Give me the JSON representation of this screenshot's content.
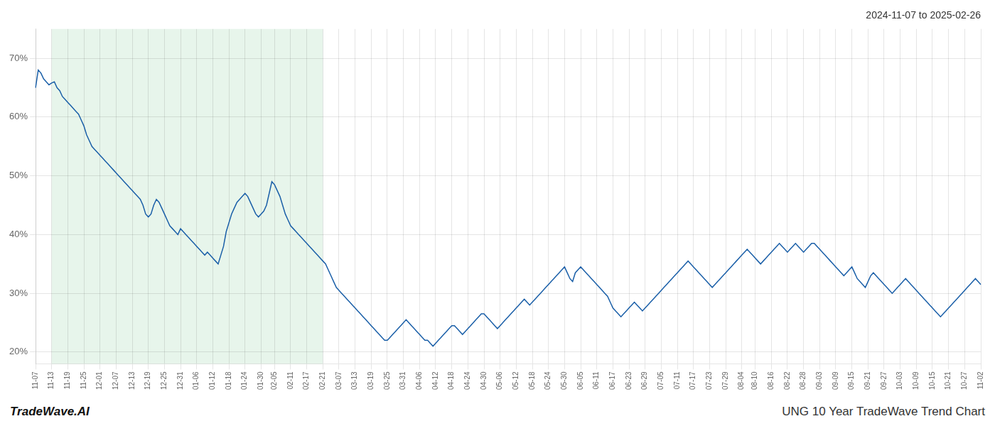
{
  "chart_data": {
    "type": "line",
    "title": "2024-11-07 to 2025-02-26",
    "annotations": [
      "TradeWave.AI",
      "UNG 10 Year TradeWave Trend Chart"
    ],
    "color": "#1a5fa8",
    "grid": true,
    "ylim": [
      18,
      75
    ],
    "yticks": [
      {
        "value": 20,
        "label": "20%"
      },
      {
        "value": 30,
        "label": "30%"
      },
      {
        "value": 40,
        "label": "40%"
      },
      {
        "value": 50,
        "label": "50%"
      },
      {
        "value": 60,
        "label": "60%"
      },
      {
        "value": 70,
        "label": "70%"
      }
    ],
    "shaded_region": {
      "from": "11-13",
      "to": "02-21",
      "color": "#d4edda"
    },
    "categories": [
      "11-07",
      null,
      null,
      null,
      null,
      null,
      "11-13",
      null,
      null,
      null,
      null,
      null,
      "11-19",
      null,
      null,
      null,
      null,
      null,
      "11-25",
      null,
      null,
      null,
      null,
      null,
      "12-01",
      null,
      null,
      null,
      null,
      null,
      "12-07",
      null,
      null,
      null,
      null,
      null,
      "12-13",
      null,
      null,
      null,
      null,
      null,
      "12-19",
      null,
      null,
      null,
      null,
      null,
      "12-25",
      null,
      null,
      null,
      null,
      null,
      "12-31",
      null,
      null,
      null,
      null,
      null,
      "01-06",
      null,
      null,
      null,
      null,
      null,
      "01-12",
      null,
      null,
      null,
      null,
      null,
      "01-18",
      null,
      null,
      null,
      null,
      null,
      "01-24",
      null,
      null,
      null,
      null,
      null,
      "01-30",
      null,
      null,
      null,
      null,
      "02-05",
      null,
      null,
      null,
      null,
      null,
      "02-11",
      null,
      null,
      null,
      null,
      null,
      "02-17",
      null,
      null,
      null,
      null,
      null,
      "02-21",
      null,
      null,
      null,
      null,
      null,
      "03-07",
      null,
      null,
      null,
      null,
      null,
      "03-13",
      null,
      null,
      null,
      null,
      null,
      "03-19",
      null,
      null,
      null,
      null,
      null,
      "03-25",
      null,
      null,
      null,
      null,
      null,
      "03-31",
      null,
      null,
      null,
      null,
      null,
      "04-06",
      null,
      null,
      null,
      null,
      null,
      "04-12",
      null,
      null,
      null,
      null,
      null,
      "04-18",
      null,
      null,
      null,
      null,
      null,
      "04-24",
      null,
      null,
      null,
      null,
      null,
      "04-30",
      null,
      null,
      null,
      null,
      null,
      "05-06",
      null,
      null,
      null,
      null,
      null,
      "05-12",
      null,
      null,
      null,
      null,
      null,
      "05-18",
      null,
      null,
      null,
      null,
      null,
      "05-24",
      null,
      null,
      null,
      null,
      null,
      "05-30",
      null,
      null,
      null,
      null,
      null,
      "06-05",
      null,
      null,
      null,
      null,
      null,
      "06-11",
      null,
      null,
      null,
      null,
      null,
      "06-17",
      null,
      null,
      null,
      null,
      null,
      "06-23",
      null,
      null,
      null,
      null,
      null,
      "06-29",
      null,
      null,
      null,
      null,
      null,
      "07-05",
      null,
      null,
      null,
      null,
      null,
      "07-11",
      null,
      null,
      null,
      null,
      null,
      "07-17",
      null,
      null,
      null,
      null,
      null,
      "07-23",
      null,
      null,
      null,
      null,
      null,
      "07-29",
      null,
      null,
      null,
      null,
      null,
      "08-04",
      null,
      null,
      null,
      null,
      "08-10",
      null,
      null,
      null,
      null,
      null,
      "08-16",
      null,
      null,
      null,
      null,
      null,
      "08-22",
      null,
      null,
      null,
      null,
      null,
      "08-28",
      null,
      null,
      null,
      null,
      null,
      "09-03",
      null,
      null,
      null,
      null,
      null,
      "09-09",
      null,
      null,
      null,
      null,
      null,
      "09-15",
      null,
      null,
      null,
      null,
      null,
      "09-21",
      null,
      null,
      null,
      null,
      null,
      "09-27",
      null,
      null,
      null,
      null,
      null,
      "10-03",
      null,
      null,
      null,
      null,
      null,
      "10-09",
      null,
      null,
      null,
      null,
      null,
      "10-15",
      null,
      null,
      null,
      null,
      null,
      "10-21",
      null,
      null,
      null,
      null,
      null,
      "10-27",
      null,
      null,
      null,
      null,
      null,
      "11-02"
    ],
    "values": [
      65.0,
      68.0,
      67.5,
      66.5,
      66.0,
      65.5,
      65.8,
      66.0,
      65.0,
      64.5,
      63.5,
      63.0,
      62.5,
      62.0,
      61.5,
      61.0,
      60.5,
      59.5,
      58.5,
      57.0,
      56.0,
      55.0,
      54.5,
      54.0,
      53.5,
      53.0,
      52.5,
      52.0,
      51.5,
      51.0,
      50.5,
      50.0,
      49.5,
      49.0,
      48.5,
      48.0,
      47.5,
      47.0,
      46.5,
      46.0,
      45.0,
      43.5,
      43.0,
      43.5,
      45.0,
      46.0,
      45.5,
      44.5,
      43.5,
      42.5,
      41.5,
      41.0,
      40.5,
      40.0,
      41.0,
      40.5,
      40.0,
      39.5,
      39.0,
      38.5,
      38.0,
      37.5,
      37.0,
      36.5,
      37.0,
      36.5,
      36.0,
      35.5,
      35.0,
      36.5,
      38.0,
      40.5,
      42.0,
      43.5,
      44.5,
      45.5,
      46.0,
      46.5,
      47.0,
      46.5,
      45.5,
      44.5,
      43.5,
      43.0,
      43.5,
      44.0,
      45.0,
      47.0,
      49.0,
      48.5,
      47.5,
      46.5,
      45.0,
      43.5,
      42.5,
      41.5,
      41.0,
      40.5,
      40.0,
      39.5,
      39.0,
      38.5,
      38.0,
      37.5,
      37.0,
      36.5,
      36.0,
      35.5,
      35.0,
      34.0,
      33.0,
      32.0,
      31.0,
      30.5,
      30.0,
      29.5,
      29.0,
      28.5,
      28.0,
      27.5,
      27.0,
      26.5,
      26.0,
      25.5,
      25.0,
      24.5,
      24.0,
      23.5,
      23.0,
      22.5,
      22.0,
      22.0,
      22.5,
      23.0,
      23.5,
      24.0,
      24.5,
      25.0,
      25.5,
      25.0,
      24.5,
      24.0,
      23.5,
      23.0,
      22.5,
      22.0,
      22.0,
      21.5,
      21.0,
      21.5,
      22.0,
      22.5,
      23.0,
      23.5,
      24.0,
      24.5,
      24.5,
      24.0,
      23.5,
      23.0,
      23.5,
      24.0,
      24.5,
      25.0,
      25.5,
      26.0,
      26.5,
      26.5,
      26.0,
      25.5,
      25.0,
      24.5,
      24.0,
      24.5,
      25.0,
      25.5,
      26.0,
      26.5,
      27.0,
      27.5,
      28.0,
      28.5,
      29.0,
      28.5,
      28.0,
      28.5,
      29.0,
      29.5,
      30.0,
      30.5,
      31.0,
      31.5,
      32.0,
      32.5,
      33.0,
      33.5,
      34.0,
      34.5,
      33.5,
      32.5,
      32.0,
      33.5,
      34.0,
      34.5,
      34.0,
      33.5,
      33.0,
      32.5,
      32.0,
      31.5,
      31.0,
      30.5,
      30.0,
      29.5,
      28.5,
      27.5,
      27.0,
      26.5,
      26.0,
      26.5,
      27.0,
      27.5,
      28.0,
      28.5,
      28.0,
      27.5,
      27.0,
      27.5,
      28.0,
      28.5,
      29.0,
      29.5,
      30.0,
      30.5,
      31.0,
      31.5,
      32.0,
      32.5,
      33.0,
      33.5,
      34.0,
      34.5,
      35.0,
      35.5,
      35.0,
      34.5,
      34.0,
      33.5,
      33.0,
      32.5,
      32.0,
      31.5,
      31.0,
      31.5,
      32.0,
      32.5,
      33.0,
      33.5,
      34.0,
      34.5,
      35.0,
      35.5,
      36.0,
      36.5,
      37.0,
      37.5,
      37.0,
      36.5,
      36.0,
      35.5,
      35.0,
      35.5,
      36.0,
      36.5,
      37.0,
      37.5,
      38.0,
      38.5,
      38.0,
      37.5,
      37.0,
      37.5,
      38.0,
      38.5,
      38.0,
      37.5,
      37.0,
      37.5,
      38.0,
      38.5,
      38.5,
      38.0,
      37.5,
      37.0,
      36.5,
      36.0,
      35.5,
      35.0,
      34.5,
      34.0,
      33.5,
      33.0,
      33.5,
      34.0,
      34.5,
      33.5,
      32.5,
      32.0,
      31.5,
      31.0,
      32.0,
      33.0,
      33.5,
      33.0,
      32.5,
      32.0,
      31.5,
      31.0,
      30.5,
      30.0,
      30.5,
      31.0,
      31.5,
      32.0,
      32.5,
      32.0,
      31.5,
      31.0,
      30.5,
      30.0,
      29.5,
      29.0,
      28.5,
      28.0,
      27.5,
      27.0,
      26.5,
      26.0,
      26.5,
      27.0,
      27.5,
      28.0,
      28.5,
      29.0,
      29.5,
      30.0,
      30.5,
      31.0,
      31.5,
      32.0,
      32.5,
      32.0,
      31.5
    ]
  }
}
